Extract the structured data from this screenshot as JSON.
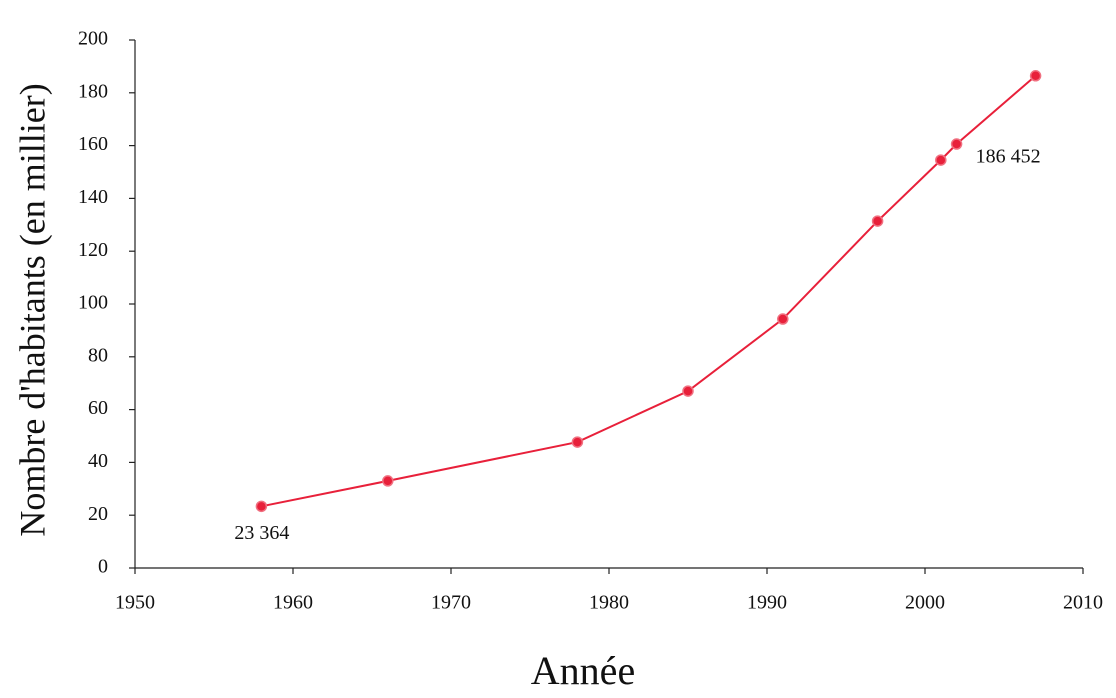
{
  "chart_data": {
    "type": "line",
    "xlabel": "Année",
    "ylabel": "Nombre d'habitants (en millier)",
    "x": [
      1958,
      1966,
      1978,
      1985,
      1991,
      1997,
      2001,
      2002,
      2007
    ],
    "series": [
      {
        "name": "Nombre d'habitants",
        "color": "#e8203a",
        "values": [
          23.364,
          33.0,
          47.7,
          67.0,
          94.3,
          131.4,
          154.5,
          160.6,
          186.452
        ],
        "value_labels": [
          "23 364",
          null,
          null,
          null,
          null,
          null,
          null,
          null,
          "186 452"
        ]
      }
    ],
    "xlim": [
      1950,
      2010
    ],
    "xticks": [
      1950,
      1960,
      1970,
      1980,
      1990,
      2000,
      2010
    ],
    "ylim": [
      0,
      200
    ],
    "yticks": [
      0,
      20,
      40,
      60,
      80,
      100,
      120,
      140,
      160,
      180,
      200
    ],
    "grid": false
  }
}
